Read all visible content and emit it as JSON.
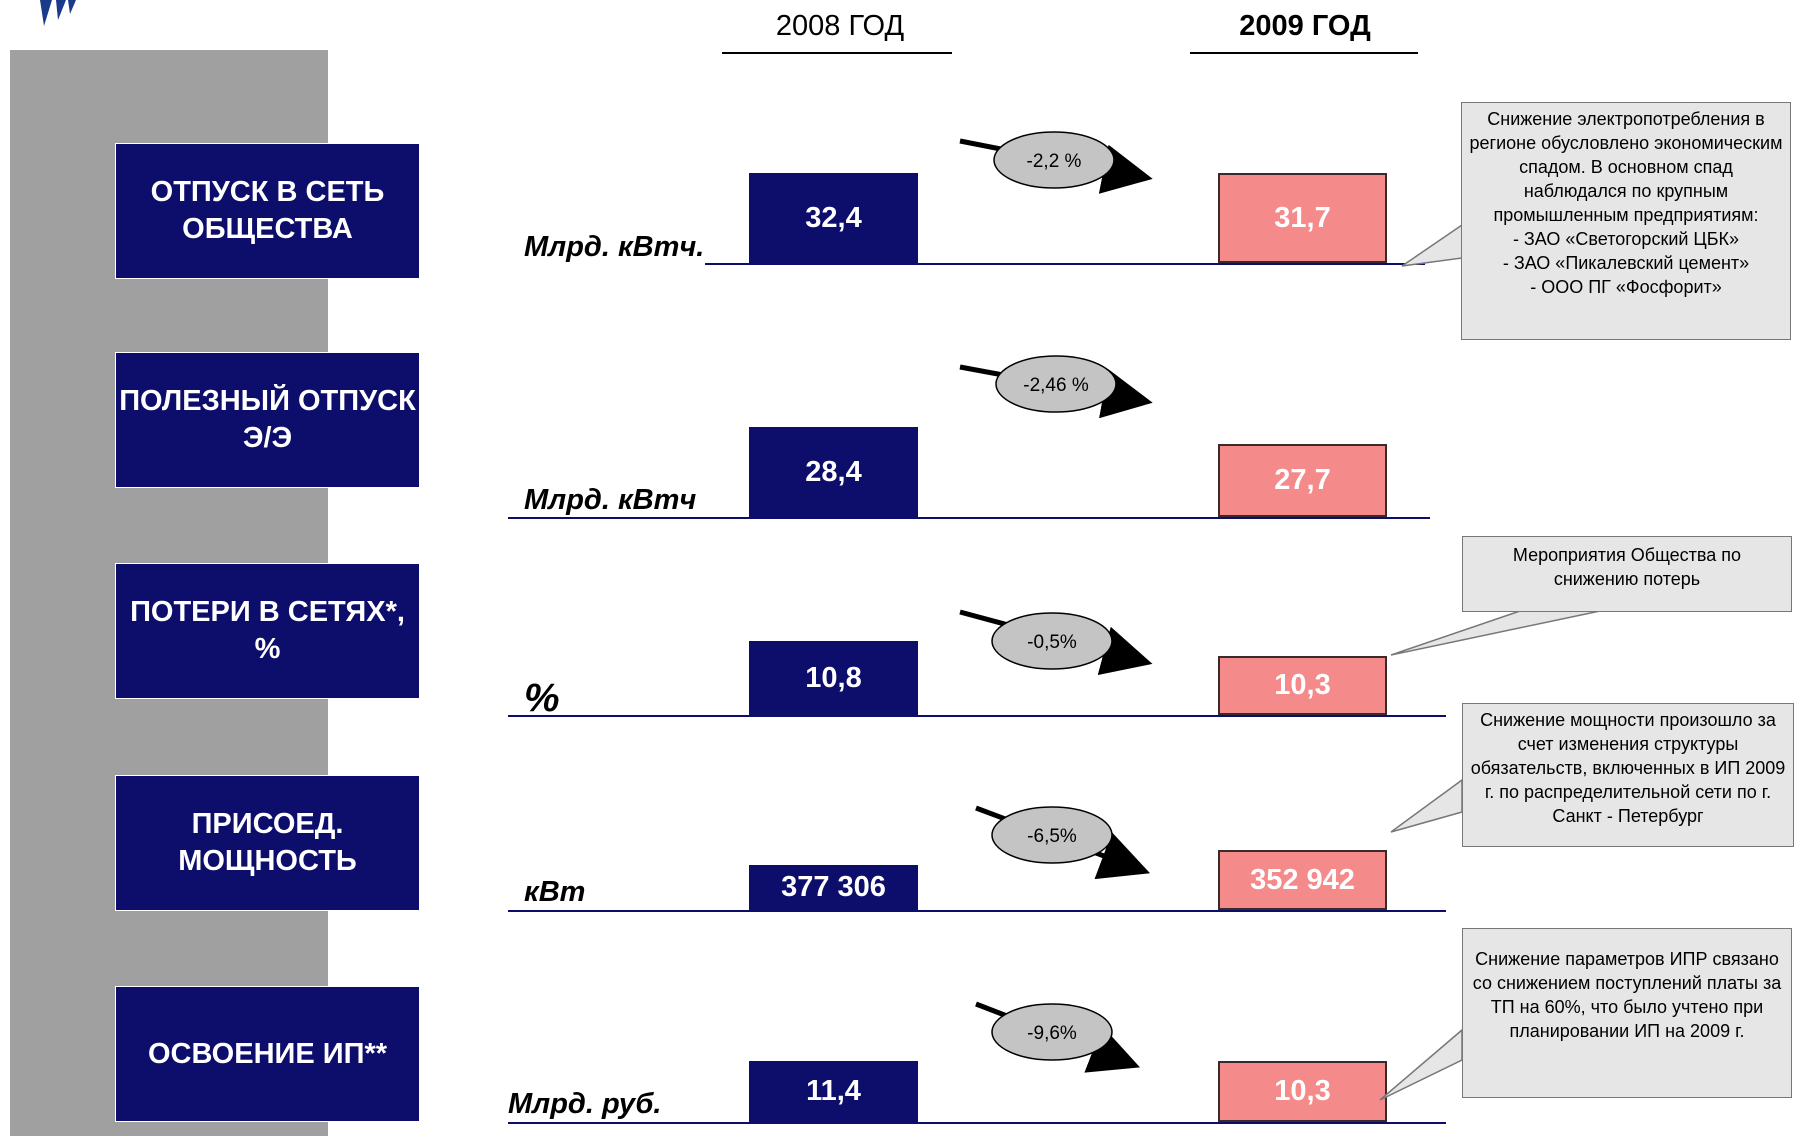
{
  "header": {
    "year_2008": "2008 ГОД",
    "year_2009": "2009 ГОД"
  },
  "colors": {
    "label_box": "#0d0d6b",
    "bar_2008": "#0d0d6b",
    "bar_2009": "#f48a8a",
    "callout": "#e6e6e6",
    "change_ellipse": "#c4c4c4"
  },
  "rows": [
    {
      "label": "ОТПУСК В СЕТЬ ОБЩЕСТВА",
      "unit": "Млрд. кВтч.",
      "v2008": "32,4",
      "v2009": "31,7",
      "change": "-2,2 %"
    },
    {
      "label": "ПОЛЕЗНЫЙ ОТПУСК Э/Э",
      "unit": "Млрд. кВтч",
      "v2008": "28,4",
      "v2009": "27,7",
      "change": "-2,46 %"
    },
    {
      "label": "ПОТЕРИ В СЕТЯХ*, %",
      "unit": "%",
      "v2008": "10,8",
      "v2009": "10,3",
      "change": "-0,5%"
    },
    {
      "label": "ПРИСОЕД. МОЩНОСТЬ",
      "unit": "кВт",
      "v2008": "377 306",
      "v2009": "352 942",
      "change": "-6,5%"
    },
    {
      "label": "ОСВОЕНИЕ ИП**",
      "unit": "Млрд. руб.",
      "v2008": "11,4",
      "v2009": "10,3",
      "change": "-9,6%"
    }
  ],
  "callouts": [
    {
      "text": "Снижение электропотребления в регионе обусловлено экономическим спадом. В основном спад наблюдался по крупным промышленным предприятиям:\n- ЗАО «Светогорский ЦБК»\n- ЗАО «Пикалевский цемент»\n- ООО ПГ «Фосфорит»"
    },
    {
      "text": "Мероприятия Общества по снижению потерь"
    },
    {
      "text": "Снижение мощности произошло за счет изменения структуры обязательств, включенных в ИП 2009 г. по распределительной сети по г. Санкт - Петербург"
    },
    {
      "text": "Снижение параметров ИПР связано со снижением поступлений платы за ТП на 60%, что было учтено при планировании ИП на 2009 г."
    }
  ],
  "chart_data": {
    "type": "bar",
    "categories": [
      "ОТПУСК В СЕТЬ ОБЩЕСТВА",
      "ПОЛЕЗНЫЙ ОТПУСК Э/Э",
      "ПОТЕРИ В СЕТЯХ*, %",
      "ПРИСОЕД. МОЩНОСТЬ",
      "ОСВОЕНИЕ ИП**"
    ],
    "series": [
      {
        "name": "2008 ГОД",
        "values": [
          32.4,
          28.4,
          10.8,
          377306,
          11.4
        ]
      },
      {
        "name": "2009 ГОД",
        "values": [
          31.7,
          27.7,
          10.3,
          352942,
          10.3
        ]
      }
    ],
    "changes": [
      "-2,2 %",
      "-2,46 %",
      "-0,5%",
      "-6,5%",
      "-9,6%"
    ],
    "units": [
      "Млрд. кВтч.",
      "Млрд. кВтч",
      "%",
      "кВт",
      "Млрд. руб."
    ]
  }
}
